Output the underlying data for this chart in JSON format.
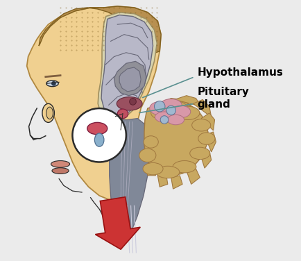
{
  "bg_color": "#ebebeb",
  "label_hypothalamus": "Hypothalamus",
  "label_pituitary": "Pituitary\ngland",
  "label_font_size": 11,
  "label_font_weight": "bold",
  "arrow_color": "#5a9090",
  "big_arrow_color": "#cc3333",
  "skin_color": "#f0d090",
  "skin_edge": "#b08840",
  "brain_outer": "#b8b8c8",
  "brain_inner": "#909098",
  "brain_dark": "#686878",
  "hypothalamus_color": "#9a5060",
  "pituitary_color": "#cc6070",
  "brainstem_color": "#808898",
  "cerebellum_color": "#c8a860",
  "cereb_edge": "#a07840",
  "circle_color": "#ffffff",
  "line_color": "#2a2a2a",
  "hair_color": "#b89050",
  "hair_edge": "#806020"
}
